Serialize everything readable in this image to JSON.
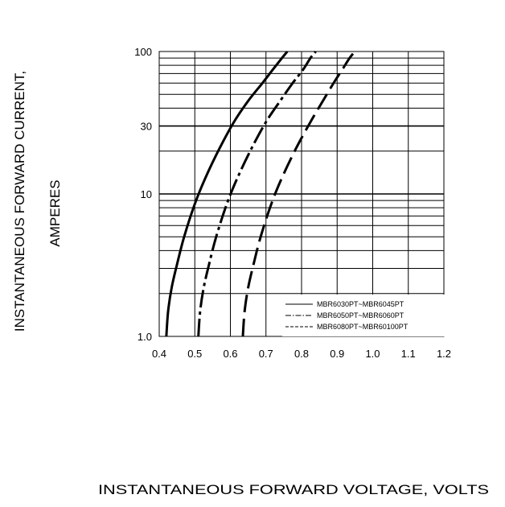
{
  "chart_data": {
    "type": "line",
    "title": "",
    "xlabel": "INSTANTANEOUS FORWARD VOLTAGE,  VOLTS",
    "ylabel_line1": "INSTANTANEOUS FORWARD CURRENT,",
    "ylabel_line2": "AMPERES",
    "x_scale": "linear",
    "y_scale": "log",
    "xlim": [
      0.4,
      1.2
    ],
    "ylim": [
      1,
      100
    ],
    "grid": true,
    "legend_position": "bottom-right",
    "x_ticks": [
      0.4,
      0.5,
      0.6,
      0.7,
      0.8,
      0.9,
      1.0,
      1.1,
      1.2
    ],
    "x_tick_labels": [
      "0.4",
      "0.5",
      "0.6",
      "0.7",
      "0.8",
      "0.9",
      "1.0",
      "1.1",
      "1.2"
    ],
    "y_ticks": [
      1,
      10,
      30,
      100
    ],
    "y_tick_labels": [
      "1.0",
      "10",
      "30",
      "100"
    ],
    "series": [
      {
        "name": "MBR6030PT~MBR6045PT",
        "line_style": "solid",
        "x": [
          0.42,
          0.425,
          0.435,
          0.45,
          0.47,
          0.5,
          0.53,
          0.57,
          0.61,
          0.65,
          0.69,
          0.72,
          0.745,
          0.76
        ],
        "y": [
          1.0,
          1.5,
          2.2,
          3.2,
          5.0,
          8.5,
          13,
          21,
          32,
          45,
          60,
          75,
          90,
          100
        ]
      },
      {
        "name": "MBR6050PT~MBR6060PT",
        "line_style": "dash-dot",
        "x": [
          0.51,
          0.515,
          0.525,
          0.54,
          0.56,
          0.59,
          0.62,
          0.66,
          0.7,
          0.74,
          0.775,
          0.805,
          0.825,
          0.84
        ],
        "y": [
          1.0,
          1.5,
          2.2,
          3.2,
          5.0,
          8.5,
          13,
          21,
          32,
          45,
          60,
          75,
          90,
          100
        ]
      },
      {
        "name": "MBR6080PT~MBR60100PT",
        "line_style": "dashed",
        "x": [
          0.635,
          0.64,
          0.65,
          0.665,
          0.685,
          0.715,
          0.745,
          0.785,
          0.825,
          0.86,
          0.89,
          0.915,
          0.935,
          0.95
        ],
        "y": [
          1.0,
          1.5,
          2.2,
          3.2,
          5.0,
          8.5,
          13,
          21,
          32,
          45,
          60,
          75,
          90,
          100
        ]
      }
    ]
  }
}
